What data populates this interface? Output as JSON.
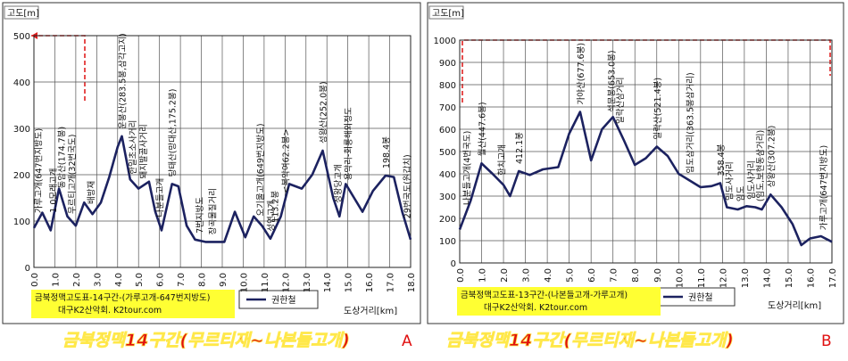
{
  "chart_data": [
    {
      "type": "line",
      "ylabel": "고도[m]",
      "xlabel": "도상거리[km]",
      "info": [
        "금북정맥고도표-14구간-(가루고개-647번지방도)",
        "대구K2산악회. K2tour.com"
      ],
      "caption": "금북정맥14구간(무르티재~나본들고개)",
      "panel_label": "A",
      "xlim": [
        0,
        18
      ],
      "ylim": [
        0,
        500
      ],
      "grid": true,
      "yticks": [
        0,
        100,
        200,
        300,
        400,
        500
      ],
      "xticks": [
        {
          "value": 0,
          "label": "0.0"
        },
        {
          "value": 1,
          "label": "1.0"
        },
        {
          "value": 2,
          "label": "2.0"
        },
        {
          "value": 3,
          "label": "3.0"
        },
        {
          "value": 4,
          "label": "4.0"
        },
        {
          "value": 5,
          "label": "5.0"
        },
        {
          "value": 6,
          "label": "6.0"
        },
        {
          "value": 7,
          "label": "7.0"
        },
        {
          "value": 8,
          "label": "8.0"
        },
        {
          "value": 9,
          "label": "9.0"
        },
        {
          "value": 10,
          "label": "10.0"
        },
        {
          "value": 11,
          "label": "11.0"
        },
        {
          "value": 12,
          "label": "12.0"
        },
        {
          "value": 13,
          "label": "13.0"
        },
        {
          "value": 14,
          "label": "14.0"
        },
        {
          "value": 15,
          "label": "15.0"
        },
        {
          "value": 16,
          "label": "16.0"
        },
        {
          "value": 17,
          "label": "17.0"
        },
        {
          "value": 18,
          "label": "18.0"
        }
      ],
      "series": [
        {
          "name": "권한철",
          "color": "#1c2260",
          "x": [
            0,
            0.4,
            0.8,
            1.2,
            1.6,
            2.0,
            2.4,
            2.8,
            3.2,
            3.6,
            4.0,
            4.2,
            4.6,
            5.0,
            5.5,
            5.8,
            6.1,
            6.6,
            6.9,
            7.3,
            7.7,
            8.2,
            9.1,
            9.6,
            10.1,
            10.5,
            10.9,
            11.3,
            11.8,
            12.2,
            12.8,
            13.3,
            13.8,
            14.3,
            14.6,
            14.9,
            15.3,
            15.7,
            16.2,
            16.8,
            17.2,
            17.6,
            18.0
          ],
          "values": [
            85,
            118,
            80,
            170,
            110,
            90,
            140,
            115,
            140,
            195,
            260,
            283,
            190,
            170,
            185,
            120,
            80,
            180,
            175,
            90,
            60,
            55,
            55,
            120,
            65,
            110,
            90,
            62,
            110,
            180,
            170,
            200,
            252,
            150,
            110,
            180,
            150,
            120,
            165,
            198,
            195,
            120,
            60
          ]
        }
      ],
      "annotations": [
        {
          "text": "가루고개(647번지방도)",
          "x": 0.2
        },
        {
          "text": "1.0모래고개",
          "x": 0.9
        },
        {
          "text": "동암산(174.7봉)",
          "x": 1.3
        },
        {
          "text": "무르티고개(32번국도)",
          "x": 1.8
        },
        {
          "text": "배방재",
          "x": 2.7
        },
        {
          "text": "운봉산(283.5봉,삼각고지)",
          "x": 4.2
        },
        {
          "text": "한일초소사거리",
          "x": 4.7
        },
        {
          "text": "돼지발골사거리",
          "x": 5.2
        },
        {
          "text": "나분들고개",
          "x": 6.0
        },
        {
          "text": "당태산(망대산,175.2봉)",
          "x": 6.6
        },
        {
          "text": "7번지방도",
          "x": 7.9
        },
        {
          "text": "장곡물질거리",
          "x": 8.5
        },
        {
          "text": "오기울고개(649번지방도)",
          "x": 10.8
        },
        {
          "text": "성연고개",
          "x": 11.3
        },
        {
          "text": "113.2봉",
          "x": 11.5
        },
        {
          "text": "<복악여62.2봉>",
          "x": 12.0
        },
        {
          "text": "성왕산(252.0봉)",
          "x": 13.8
        },
        {
          "text": "성왕당고개",
          "x": 14.5
        },
        {
          "text": "용악리-회룡해외정도",
          "x": 15.0
        },
        {
          "text": "198.4봉",
          "x": 16.8
        },
        {
          "text": "29번국도(원갑치)",
          "x": 17.8
        }
      ]
    },
    {
      "type": "line",
      "ylabel": "고도[m]",
      "xlabel": "도상거리[km]",
      "info": [
        "금북정맥고도표-13구간-(나본들고개-가루고개)",
        "대구K2산악회. K2tour.com"
      ],
      "caption": "금북정맥14구간(무르티재~나본들고개)",
      "panel_label": "B",
      "xlim": [
        0,
        17
      ],
      "ylim": [
        0,
        1000
      ],
      "grid": true,
      "yticks": [
        0,
        100,
        200,
        300,
        400,
        500,
        600,
        700,
        800,
        900,
        1000
      ],
      "xticks": [
        {
          "value": 0,
          "label": "0.0"
        },
        {
          "value": 1,
          "label": "1.0"
        },
        {
          "value": 2,
          "label": "2.0"
        },
        {
          "value": 3,
          "label": "3.0"
        },
        {
          "value": 4,
          "label": "4.0"
        },
        {
          "value": 5,
          "label": "5.0"
        },
        {
          "value": 6,
          "label": "6.0"
        },
        {
          "value": 7,
          "label": "7.0"
        },
        {
          "value": 8,
          "label": "8.0"
        },
        {
          "value": 9,
          "label": "9.0"
        },
        {
          "value": 10,
          "label": "10.0"
        },
        {
          "value": 11,
          "label": "11.0"
        },
        {
          "value": 12,
          "label": "12.0"
        },
        {
          "value": 13,
          "label": "13.0"
        },
        {
          "value": 14,
          "label": "14.0"
        },
        {
          "value": 15,
          "label": "15.0"
        },
        {
          "value": 16,
          "label": "16.0"
        },
        {
          "value": 17,
          "label": "17.0"
        }
      ],
      "series": [
        {
          "name": "권한철",
          "color": "#1c2260",
          "x": [
            0,
            0.5,
            1.0,
            1.5,
            2.0,
            2.3,
            2.7,
            3.2,
            3.8,
            4.5,
            5.0,
            5.5,
            6.0,
            6.5,
            7.0,
            7.5,
            8.0,
            8.5,
            9.0,
            9.5,
            10.0,
            10.5,
            11.0,
            11.5,
            11.9,
            12.2,
            12.7,
            13.1,
            13.5,
            13.8,
            14.2,
            14.7,
            15.2,
            15.6,
            16.0,
            16.5,
            17.0
          ],
          "values": [
            150,
            280,
            447,
            400,
            350,
            300,
            412,
            395,
            420,
            430,
            580,
            678,
            460,
            600,
            655,
            550,
            440,
            470,
            522,
            480,
            400,
            370,
            340,
            345,
            358,
            250,
            240,
            255,
            250,
            240,
            307,
            250,
            175,
            80,
            110,
            120,
            95
          ]
        }
      ],
      "annotations": [
        {
          "text": "나분들고개(4번국도)",
          "x": 0.3
        },
        {
          "text": "월산(447.6봉)",
          "x": 1.0
        },
        {
          "text": "한치고개",
          "x": 1.9
        },
        {
          "text": "412.1봉",
          "x": 2.7
        },
        {
          "text": "가야산(677.6봉)",
          "x": 5.5
        },
        {
          "text": "석문봉(653.0봉)",
          "x": 6.9
        },
        {
          "text": "일락산삼거리",
          "x": 7.3
        },
        {
          "text": "일락산(521.4봉)",
          "x": 9.0
        },
        {
          "text": "임도삼거리(363.5봉삼거리)",
          "x": 10.5
        },
        {
          "text": "358.4봉",
          "x": 11.9
        },
        {
          "text": "임도사거리",
          "x": 12.3
        },
        {
          "text": "임도",
          "x": 12.8
        },
        {
          "text": "임도사거리",
          "x": 13.3
        },
        {
          "text": "(임도,보현동삼거리)",
          "x": 13.7
        },
        {
          "text": "상왕산(307.2봉)",
          "x": 14.2
        },
        {
          "text": "가루고개(647번지방도)",
          "x": 16.6
        }
      ]
    }
  ]
}
